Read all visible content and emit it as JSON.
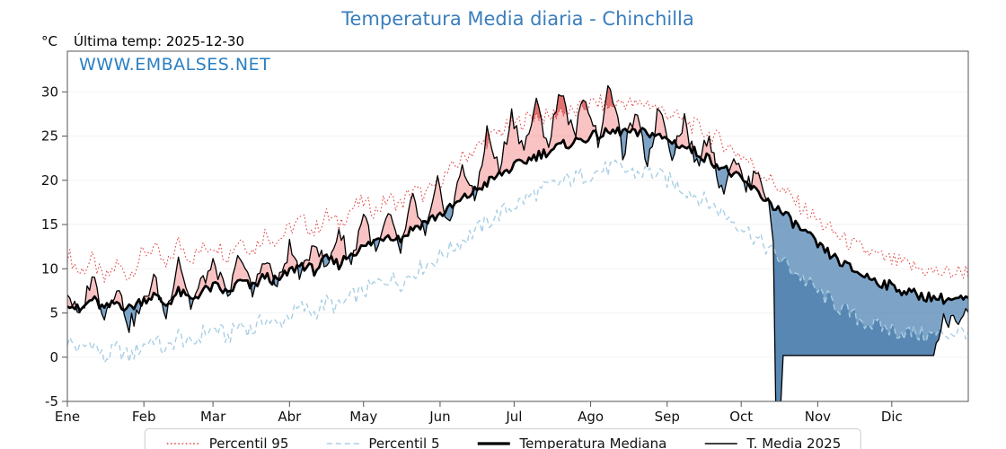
{
  "header": {
    "degree_label": "°C",
    "last_temp_label": "Última temp: 2025-12-30"
  },
  "watermark": "WWW.EMBALSES.NET",
  "colors": {
    "title": "#3a7ebd",
    "watermark": "#2b7fc2",
    "axis": "#555555",
    "tick_text": "#111111"
  },
  "chart_data": {
    "type": "line",
    "title": "Temperatura Media diaria - Chinchilla",
    "xlabel": "",
    "ylabel": "°C",
    "legend_position": "bottom",
    "grid": "faint",
    "days_in_year": 365,
    "anchor_step": 5,
    "x_months": [
      "Ene",
      "Feb",
      "Mar",
      "Abr",
      "May",
      "Jun",
      "Jul",
      "Ago",
      "Sep",
      "Oct",
      "Nov",
      "Dic"
    ],
    "month_start_days": [
      0,
      31,
      59,
      90,
      120,
      151,
      181,
      212,
      243,
      273,
      304,
      334
    ],
    "yticks": [
      -5,
      0,
      5,
      10,
      15,
      20,
      25,
      30
    ],
    "ylim": [
      -5,
      34.6
    ],
    "fills": {
      "above": "rgba(242,106,106,0.40)",
      "above_extreme": "rgba(205,45,45,0.55)",
      "below": "rgba(70,125,175,0.70)",
      "below_extreme": "rgba(45,100,155,0.45)"
    },
    "series": [
      {
        "name": "Percentil 95",
        "style": "dotted",
        "color": "#e14848",
        "width": 1.1,
        "noise": 1.0,
        "values": [
          11.8,
          9.5,
          11.0,
          8.6,
          10.5,
          9.2,
          11.5,
          12.5,
          10.0,
          13.0,
          11.2,
          12.2,
          12.8,
          11.5,
          13.5,
          12.0,
          14.0,
          13.2,
          14.5,
          15.5,
          14.2,
          16.0,
          15.0,
          16.8,
          17.5,
          16.5,
          18.0,
          17.2,
          19.0,
          18.2,
          19.8,
          21.0,
          22.5,
          23.5,
          24.5,
          25.5,
          26.2,
          26.8,
          27.5,
          27.0,
          28.0,
          27.6,
          28.4,
          28.8,
          28.2,
          29.0,
          28.4,
          28.8,
          28.0,
          27.4,
          26.6,
          26.0,
          25.2,
          24.4,
          23.4,
          22.4,
          21.2,
          20.0,
          18.8,
          17.6,
          16.4,
          15.2,
          14.2,
          13.2,
          12.4,
          11.8,
          11.2,
          10.8,
          10.4,
          10.0,
          9.7,
          9.5,
          9.6,
          9.8
        ]
      },
      {
        "name": "Percentil 5",
        "style": "dashed",
        "color": "#a9cfe4",
        "width": 1.4,
        "noise": 1.0,
        "values": [
          2.0,
          0.8,
          1.8,
          -0.3,
          1.0,
          0.0,
          1.2,
          2.2,
          0.5,
          2.5,
          1.2,
          2.8,
          3.2,
          2.2,
          3.8,
          3.0,
          4.4,
          3.6,
          4.8,
          5.6,
          5.0,
          6.2,
          5.6,
          6.8,
          7.4,
          8.2,
          9.0,
          8.4,
          9.6,
          10.4,
          11.2,
          12.2,
          13.2,
          14.2,
          15.2,
          16.2,
          17.0,
          17.8,
          18.6,
          19.2,
          19.8,
          20.2,
          20.6,
          21.0,
          21.4,
          21.2,
          20.8,
          21.0,
          20.4,
          19.8,
          19.0,
          18.2,
          17.4,
          16.4,
          15.4,
          14.4,
          13.2,
          12.0,
          10.8,
          9.6,
          8.4,
          7.2,
          6.2,
          5.2,
          4.4,
          3.8,
          3.4,
          3.0,
          2.8,
          2.6,
          2.5,
          2.6,
          2.8,
          3.0
        ]
      },
      {
        "name": "Temperatura Mediana",
        "style": "solid",
        "color": "#000000",
        "width": 2.7,
        "noise": 0.6,
        "values": [
          6.3,
          5.2,
          6.6,
          5.4,
          6.2,
          5.5,
          6.4,
          7.0,
          5.9,
          7.4,
          6.5,
          7.5,
          8.0,
          7.2,
          8.6,
          7.9,
          9.2,
          8.5,
          9.7,
          10.5,
          9.8,
          11.1,
          10.5,
          11.8,
          12.4,
          13.2,
          13.9,
          13.4,
          14.6,
          15.3,
          16.0,
          16.8,
          17.8,
          18.8,
          19.7,
          20.6,
          21.4,
          22.1,
          22.8,
          23.3,
          23.9,
          24.3,
          24.8,
          25.1,
          25.4,
          25.6,
          25.2,
          25.5,
          24.9,
          24.4,
          23.8,
          23.1,
          22.4,
          21.5,
          20.6,
          19.6,
          18.5,
          17.4,
          16.2,
          15.0,
          13.8,
          12.4,
          11.4,
          10.4,
          9.6,
          9.0,
          8.4,
          7.9,
          7.4,
          7.0,
          6.8,
          6.6,
          6.5,
          6.5
        ]
      },
      {
        "name": "T. Media 2025",
        "style": "solid",
        "color": "#000000",
        "width": 1.3,
        "noise": 1.0,
        "values": [
          7.5,
          4.2,
          9.5,
          4.8,
          8.2,
          3.6,
          5.5,
          9.0,
          4.6,
          11.5,
          5.8,
          8.8,
          10.5,
          6.3,
          12.0,
          7.0,
          11.5,
          7.8,
          12.5,
          9.0,
          13.5,
          9.8,
          14.5,
          10.5,
          16.5,
          11.5,
          16.0,
          12.0,
          18.0,
          13.5,
          19.5,
          15.0,
          22.0,
          17.5,
          25.5,
          21.0,
          27.5,
          23.5,
          28.5,
          24.0,
          30.5,
          25.0,
          29.5,
          24.5,
          31.0,
          23.0,
          27.5,
          22.0,
          28.5,
          23.0,
          27.0,
          21.5,
          25.5,
          18.5,
          23.0,
          19.0,
          21.5,
          16.0,
          0.2,
          0.2,
          0.2,
          0.2,
          0.2,
          0.2,
          0.2,
          0.2,
          0.2,
          0.2,
          0.2,
          0.2,
          0.2,
          4.2,
          3.8,
          6.0
        ],
        "flat_range": [
          290,
          351,
          0.2
        ],
        "overrides": [
          [
            287,
            -5.5
          ],
          [
            288,
            -5.5
          ],
          [
            289,
            -5.5
          ]
        ]
      }
    ]
  }
}
